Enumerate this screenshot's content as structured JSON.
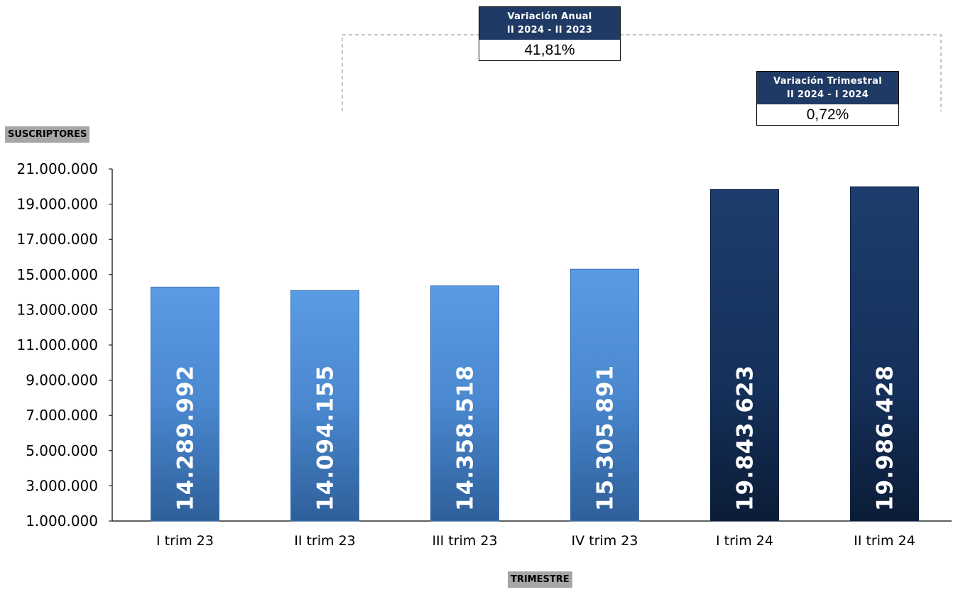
{
  "colors": {
    "light_bar": "#4f8fd6",
    "dark_bar": "#18345e",
    "box_header": "#1f3a64",
    "axis_tag": "#a6a6a6"
  },
  "y_tag": "SUSCRIPTORES",
  "x_tag": "TRIMESTRE",
  "annual_box": {
    "title_line1": "Variación Anual",
    "title_line2": "II 2024 - II 2023",
    "value": "41,81%"
  },
  "quarterly_box": {
    "title_line1": "Variación Trimestral",
    "title_line2": "II 2024 - I 2024",
    "value": "0,72%"
  },
  "chart_data": {
    "type": "bar",
    "categories": [
      "I trim 23",
      "II trim 23",
      "III trim 23",
      "IV trim 23",
      "I trim 24",
      "II trim 24"
    ],
    "values": [
      14289992,
      14094155,
      14358518,
      15305891,
      19843623,
      19986428
    ],
    "value_labels": [
      "14.289.992",
      "14.094.155",
      "14.358.518",
      "15.305.891",
      "19.843.623",
      "19.986.428"
    ],
    "bar_shades": [
      "light",
      "light",
      "light",
      "light",
      "dark",
      "dark"
    ],
    "ylabel": "SUSCRIPTORES",
    "xlabel": "TRIMESTRE",
    "ylim": [
      1000000,
      21000000
    ],
    "y_ticks": [
      1000000,
      3000000,
      5000000,
      7000000,
      9000000,
      11000000,
      13000000,
      15000000,
      17000000,
      19000000,
      21000000
    ],
    "y_tick_labels": [
      "1.000.000",
      "3.000.000",
      "5.000.000",
      "7.000.000",
      "9.000.000",
      "11.000.000",
      "13.000.000",
      "15.000.000",
      "17.000.000",
      "19.000.000",
      "21.000.000"
    ],
    "grid": false,
    "legend": "none"
  }
}
